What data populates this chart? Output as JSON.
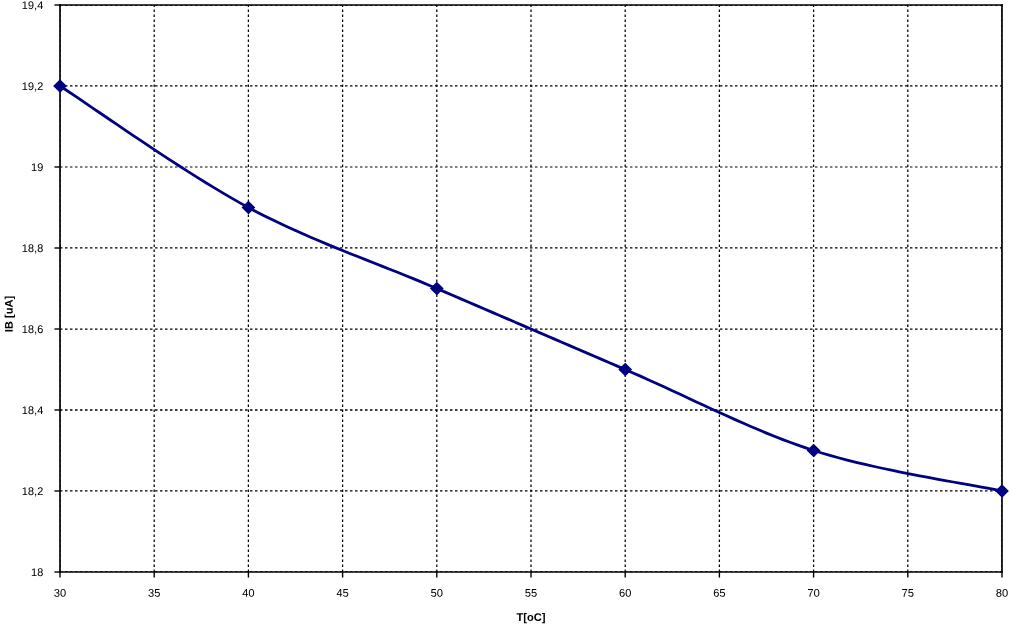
{
  "chart_data": {
    "type": "line",
    "xlabel": "T[oC]",
    "ylabel": "IB [uA]",
    "x": [
      30,
      40,
      50,
      60,
      70,
      80
    ],
    "series": [
      {
        "color": "#000080",
        "values": [
          19.2,
          18.9,
          18.7,
          18.5,
          18.3,
          18.2
        ]
      }
    ],
    "xlim": [
      30,
      80
    ],
    "xticks": [
      30,
      35,
      40,
      45,
      50,
      55,
      60,
      65,
      70,
      75,
      80
    ],
    "ylim": [
      18,
      19.4
    ],
    "yticks": [
      18,
      {
        "value": 18.2,
        "label": "18,2"
      },
      {
        "value": 18.4,
        "label": "18,4"
      },
      {
        "value": 18.6,
        "label": "18,6"
      },
      {
        "value": 18.8,
        "label": "18,8"
      },
      19,
      {
        "value": 19.2,
        "label": "19,2"
      },
      {
        "value": 19.4,
        "label": "19,4"
      }
    ],
    "grid": true,
    "marker": "diamond",
    "line_style": "solid"
  }
}
